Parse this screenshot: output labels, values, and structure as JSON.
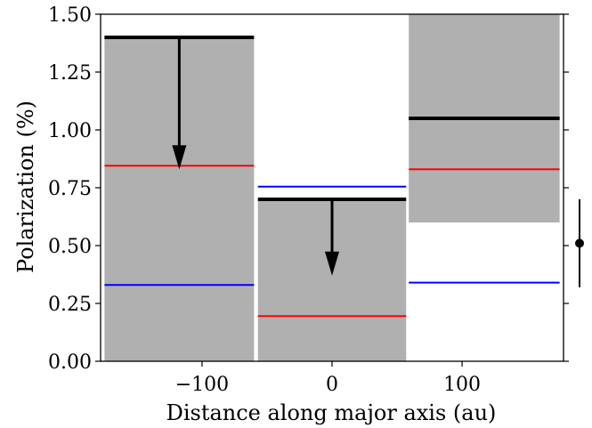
{
  "chart_data": {
    "type": "bar",
    "xlabel": "Distance along major axis (au)",
    "ylabel": "Polarization (%)",
    "xlim": [
      -178,
      178
    ],
    "ylim": [
      0.0,
      1.5
    ],
    "x_ticks": [
      -100,
      0,
      100
    ],
    "x_tick_labels": [
      "−100",
      "0",
      "100"
    ],
    "y_ticks": [
      0.0,
      0.25,
      0.5,
      0.75,
      1.0,
      1.25,
      1.5
    ],
    "y_tick_labels": [
      "0.00",
      "0.25",
      "0.50",
      "0.75",
      "1.00",
      "1.25",
      "1.50"
    ],
    "grid": false,
    "colors": {
      "band": "#b0b0b0",
      "measured": "#000000",
      "red_model": "#ff0000",
      "blue_model": "#0000ff"
    },
    "bins": [
      {
        "x_start": -175,
        "x_end": -60,
        "band": [
          0.0,
          1.4
        ],
        "measured": 1.4,
        "upper_limit": true,
        "arrow_to": 0.83,
        "red": 0.845,
        "blue": 0.33
      },
      {
        "x_start": -57,
        "x_end": 57,
        "band": [
          0.0,
          0.7
        ],
        "measured": 0.7,
        "upper_limit": true,
        "arrow_to": 0.37,
        "red": 0.195,
        "blue": 0.755
      },
      {
        "x_start": 59,
        "x_end": 175,
        "band": [
          0.6,
          1.5
        ],
        "measured": 1.05,
        "upper_limit": false,
        "red": 0.83,
        "blue": 0.34
      }
    ],
    "outside_errorbar": {
      "y": 0.51,
      "y_err": [
        0.32,
        0.7
      ]
    }
  }
}
